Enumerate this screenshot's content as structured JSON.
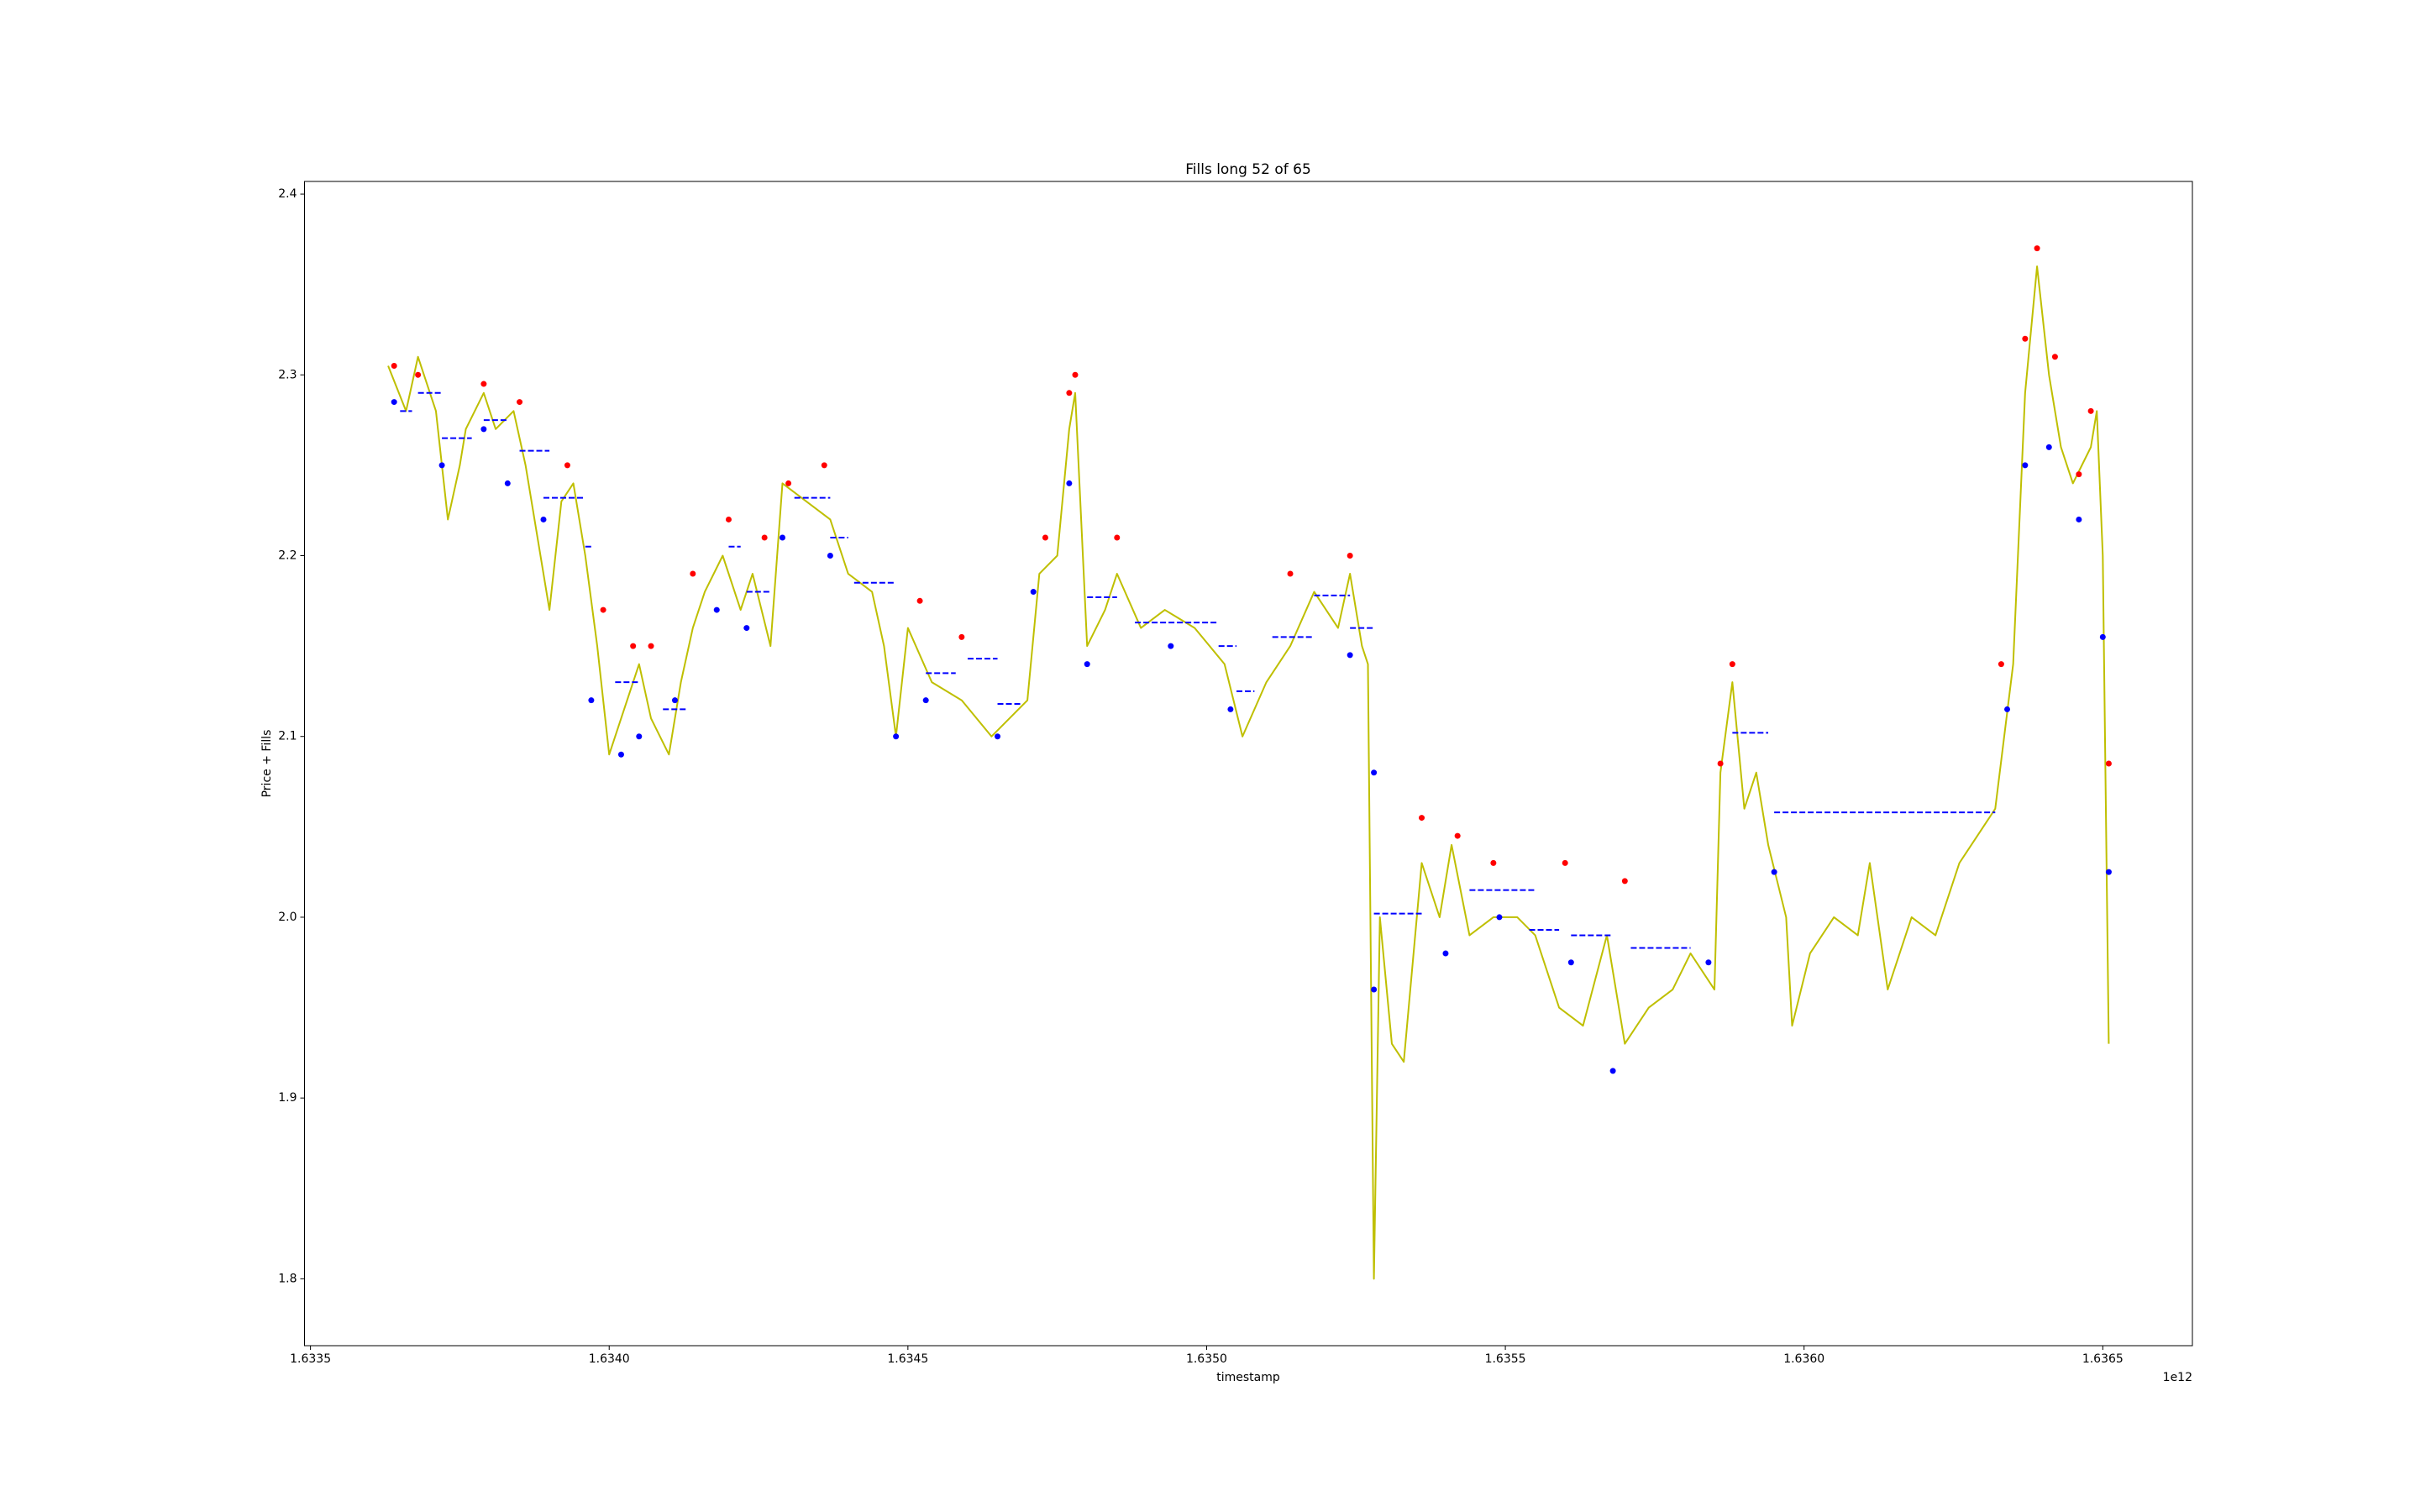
{
  "chart_data": {
    "type": "line",
    "title": "Fills long 52 of 65",
    "x_label": "timestamp",
    "y_label": "Price + Fills",
    "x_offset_label": "1e12",
    "xlim": [
      1.63349,
      1.63665
    ],
    "ylim": [
      1.763,
      2.407
    ],
    "xticks": [
      1.6335,
      {
        "value": 1.634,
        "label": "1.6340"
      },
      1.6345,
      {
        "value": 1.635,
        "label": "1.6350"
      },
      1.6355,
      {
        "value": 1.636,
        "label": "1.6360"
      },
      1.6365
    ],
    "yticks": [
      1.8,
      1.9,
      {
        "value": 2,
        "label": "2.0"
      },
      2.1,
      2.2,
      2.3,
      2.4
    ],
    "series": [
      {
        "color": "#bfbf00",
        "marker": "none",
        "x": [
          1.63363,
          1.63366,
          1.63368,
          1.63371,
          1.63373,
          1.63375,
          1.63376,
          1.63379,
          1.63381,
          1.63384,
          1.63386,
          1.6339,
          1.63392,
          1.63394,
          1.63396,
          1.63398,
          1.634,
          1.63402,
          1.63405,
          1.63407,
          1.6341,
          1.63412,
          1.63414,
          1.63416,
          1.63419,
          1.63422,
          1.63424,
          1.63427,
          1.63429,
          1.63433,
          1.63437,
          1.6344,
          1.63444,
          1.63446,
          1.63448,
          1.6345,
          1.63454,
          1.63459,
          1.63464,
          1.6347,
          1.63472,
          1.63475,
          1.63477,
          1.63478,
          1.6348,
          1.63483,
          1.63485,
          1.63489,
          1.63493,
          1.63498,
          1.63503,
          1.63506,
          1.6351,
          1.63514,
          1.63518,
          1.63522,
          1.63524,
          1.63526,
          1.63527,
          1.63528,
          1.63529,
          1.63531,
          1.63533,
          1.63536,
          1.63539,
          1.63541,
          1.63544,
          1.63548,
          1.63552,
          1.63555,
          1.63559,
          1.63563,
          1.63567,
          1.6357,
          1.63574,
          1.63578,
          1.63581,
          1.63585,
          1.63586,
          1.63588,
          1.6359,
          1.63592,
          1.63594,
          1.63597,
          1.63598,
          1.63601,
          1.63605,
          1.63609,
          1.63611,
          1.63614,
          1.63618,
          1.63622,
          1.63626,
          1.6363,
          1.63632,
          1.63635,
          1.63637,
          1.63639,
          1.63641,
          1.63643,
          1.63645,
          1.63648,
          1.63649,
          1.6365,
          1.63651
        ],
        "values": [
          2.305,
          2.28,
          2.31,
          2.28,
          2.22,
          2.25,
          2.27,
          2.29,
          2.27,
          2.28,
          2.25,
          2.17,
          2.23,
          2.24,
          2.2,
          2.15,
          2.09,
          2.11,
          2.14,
          2.11,
          2.09,
          2.13,
          2.16,
          2.18,
          2.2,
          2.17,
          2.19,
          2.15,
          2.24,
          2.23,
          2.22,
          2.19,
          2.18,
          2.15,
          2.1,
          2.16,
          2.13,
          2.12,
          2.1,
          2.12,
          2.19,
          2.2,
          2.27,
          2.29,
          2.15,
          2.17,
          2.19,
          2.16,
          2.17,
          2.16,
          2.14,
          2.1,
          2.13,
          2.15,
          2.18,
          2.16,
          2.19,
          2.15,
          2.14,
          1.8,
          2.0,
          1.93,
          1.92,
          2.03,
          2.0,
          2.04,
          1.99,
          2.0,
          2.0,
          1.99,
          1.95,
          1.94,
          1.99,
          1.93,
          1.95,
          1.96,
          1.98,
          1.96,
          2.08,
          2.13,
          2.06,
          2.08,
          2.04,
          2.0,
          1.94,
          1.98,
          2.0,
          1.99,
          2.03,
          1.96,
          2.0,
          1.99,
          2.03,
          2.05,
          2.06,
          2.14,
          2.29,
          2.36,
          2.3,
          2.26,
          2.24,
          2.26,
          2.28,
          2.2,
          1.93
        ]
      },
      {
        "color": "red",
        "marker": "o",
        "x": [
          1.63364,
          1.63368,
          1.63379,
          1.63385,
          1.63393,
          1.63399,
          1.63404,
          1.63407,
          1.63414,
          1.6342,
          1.63426,
          1.6343,
          1.63436,
          1.63452,
          1.63459,
          1.63473,
          1.63477,
          1.63478,
          1.63485,
          1.63514,
          1.63524,
          1.63536,
          1.63542,
          1.63548,
          1.6356,
          1.6357,
          1.63586,
          1.63588,
          1.63633,
          1.63637,
          1.63639,
          1.63642,
          1.63646,
          1.63648,
          1.63651
        ],
        "values": [
          2.305,
          2.3,
          2.295,
          2.285,
          2.25,
          2.17,
          2.15,
          2.15,
          2.19,
          2.22,
          2.21,
          2.24,
          2.25,
          2.175,
          2.155,
          2.21,
          2.29,
          2.3,
          2.21,
          2.19,
          2.2,
          2.055,
          2.045,
          2.03,
          2.03,
          2.02,
          2.085,
          2.14,
          2.14,
          2.32,
          2.37,
          2.31,
          2.245,
          2.28,
          2.085
        ]
      },
      {
        "color": "blue",
        "marker": "o",
        "x": [
          1.63364,
          1.63372,
          1.63379,
          1.63383,
          1.63389,
          1.63397,
          1.63402,
          1.63405,
          1.63411,
          1.63418,
          1.63423,
          1.63429,
          1.63437,
          1.63448,
          1.63453,
          1.63465,
          1.63471,
          1.63477,
          1.6348,
          1.63494,
          1.63504,
          1.63524,
          1.63528,
          1.63528,
          1.6354,
          1.63549,
          1.63561,
          1.63568,
          1.63584,
          1.63595,
          1.63634,
          1.63637,
          1.63641,
          1.63646,
          1.6365,
          1.63651
        ],
        "values": [
          2.285,
          2.25,
          2.27,
          2.24,
          2.22,
          2.12,
          2.09,
          2.1,
          2.12,
          2.17,
          2.16,
          2.21,
          2.2,
          2.1,
          2.12,
          2.1,
          2.18,
          2.24,
          2.14,
          2.15,
          2.115,
          2.145,
          2.08,
          1.96,
          1.98,
          2.0,
          1.975,
          1.915,
          1.975,
          2.025,
          2.115,
          2.25,
          2.26,
          2.22,
          2.155,
          2.025
        ]
      }
    ],
    "hlines": {
      "color": "blue",
      "linestyle": "dashed",
      "x": [
        [
          1.63365,
          1.63367
        ],
        [
          1.63368,
          1.63372
        ],
        [
          1.63372,
          1.63377
        ],
        [
          1.63379,
          1.63383
        ],
        [
          1.63385,
          1.6339
        ],
        [
          1.63389,
          1.63396
        ],
        [
          1.63396,
          1.63397
        ],
        [
          1.63401,
          1.63405
        ],
        [
          1.63409,
          1.63413
        ],
        [
          1.6342,
          1.63422
        ],
        [
          1.63423,
          1.63427
        ],
        [
          1.63431,
          1.63437
        ],
        [
          1.63437,
          1.6344
        ],
        [
          1.63441,
          1.63448
        ],
        [
          1.63453,
          1.63458
        ],
        [
          1.6346,
          1.63465
        ],
        [
          1.63465,
          1.63469
        ],
        [
          1.6348,
          1.63485
        ],
        [
          1.63488,
          1.63502
        ],
        [
          1.63502,
          1.63505
        ],
        [
          1.63505,
          1.63508
        ],
        [
          1.63511,
          1.63518
        ],
        [
          1.63518,
          1.63524
        ],
        [
          1.63524,
          1.63528
        ],
        [
          1.63528,
          1.63536
        ],
        [
          1.63544,
          1.63555
        ],
        [
          1.63554,
          1.63559
        ],
        [
          1.63561,
          1.63568
        ],
        [
          1.63571,
          1.63581
        ],
        [
          1.63588,
          1.63594
        ],
        [
          1.63595,
          1.63632
        ]
      ],
      "values": [
        2.28,
        2.29,
        2.265,
        2.275,
        2.258,
        2.232,
        2.205,
        2.13,
        2.115,
        2.205,
        2.18,
        2.232,
        2.21,
        2.185,
        2.135,
        2.143,
        2.118,
        2.177,
        2.163,
        2.15,
        2.125,
        2.155,
        2.178,
        2.16,
        2.002,
        2.015,
        1.993,
        1.99,
        1.983,
        2.102,
        2.058
      ]
    }
  }
}
